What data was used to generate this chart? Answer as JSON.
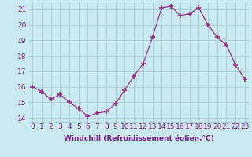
{
  "x": [
    0,
    1,
    2,
    3,
    4,
    5,
    6,
    7,
    8,
    9,
    10,
    11,
    12,
    13,
    14,
    15,
    16,
    17,
    18,
    19,
    20,
    21,
    22,
    23
  ],
  "y": [
    16.0,
    15.7,
    15.2,
    15.5,
    15.0,
    14.6,
    14.1,
    14.3,
    14.4,
    14.9,
    15.8,
    16.7,
    17.5,
    19.2,
    21.1,
    21.2,
    20.6,
    20.7,
    21.1,
    20.0,
    19.2,
    18.7,
    17.4,
    16.5
  ],
  "xlabel": "Windchill (Refroidissement éolien,°C)",
  "xlim": [
    -0.5,
    23.5
  ],
  "ylim": [
    13.7,
    21.5
  ],
  "yticks": [
    14,
    15,
    16,
    17,
    18,
    19,
    20,
    21
  ],
  "xticks": [
    0,
    1,
    2,
    3,
    4,
    5,
    6,
    7,
    8,
    9,
    10,
    11,
    12,
    13,
    14,
    15,
    16,
    17,
    18,
    19,
    20,
    21,
    22,
    23
  ],
  "line_color": "#9b2d8e",
  "marker_color": "#9b2d8e",
  "bg_color": "#c8eaf0",
  "grid_color": "#a8ccd8",
  "text_color": "#7b1d8e",
  "xlabel_fontsize": 6.5,
  "tick_fontsize": 6.5
}
